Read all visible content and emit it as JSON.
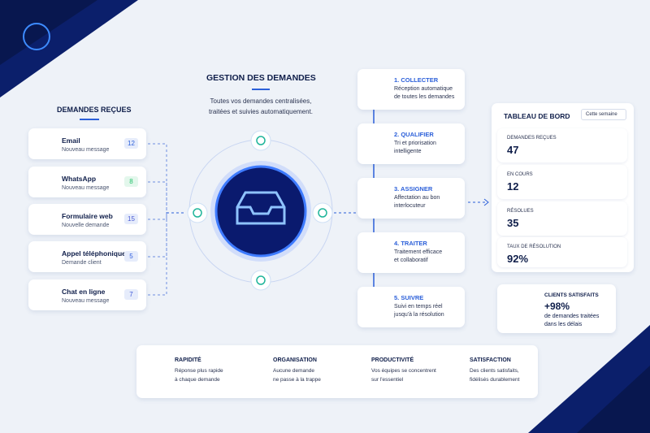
{
  "left": {
    "title": "DEMANDES REÇUES",
    "items": [
      {
        "label": "Email",
        "sub": "Nouveau message",
        "count": 12
      },
      {
        "label": "WhatsApp",
        "sub": "Nouveau message",
        "count": 8
      },
      {
        "label": "Formulaire web",
        "sub": "Nouvelle demande",
        "count": 15
      },
      {
        "label": "Appel téléphonique",
        "sub": "Demande client",
        "count": 5
      },
      {
        "label": "Chat en ligne",
        "sub": "Nouveau message",
        "count": 7
      }
    ]
  },
  "center": {
    "title": "GESTION DES DEMANDES",
    "lines": [
      "Toutes vos demandes centralisées,",
      "traitées et suivies automatiquement."
    ]
  },
  "steps": [
    {
      "title": "1. COLLECTER",
      "lines": [
        "Réception automatique",
        "de toutes les demandes"
      ]
    },
    {
      "title": "2. QUALIFIER",
      "lines": [
        "Tri et priorisation",
        "intelligente"
      ]
    },
    {
      "title": "3. ASSIGNER",
      "lines": [
        "Affectation au bon",
        "interlocuteur"
      ]
    },
    {
      "title": "4. TRAITER",
      "lines": [
        "Traitement efficace",
        "et collaboratif"
      ]
    },
    {
      "title": "5. SUIVRE",
      "lines": [
        "Suivi en temps réel",
        "jusqu'à la résolution"
      ]
    }
  ],
  "dashboard": {
    "title": "TABLEAU DE BORD",
    "period": "Cette semaine",
    "metrics": [
      {
        "label": "DEMANDES REÇUES",
        "value": 47
      },
      {
        "label": "EN COURS",
        "value": 12
      },
      {
        "label": "RÉSOLUES",
        "value": 35
      },
      {
        "label": "TAUX DE RÉSOLUTION",
        "value": "92%"
      }
    ]
  },
  "satisfaction": {
    "title": "CLIENTS SATISFAITS",
    "value": "+98%",
    "lines": [
      "de demandes traitées",
      "dans les délais"
    ]
  },
  "benefits": [
    {
      "title": "RAPIDITÉ",
      "lines": [
        "Réponse plus rapide",
        "à chaque demande"
      ]
    },
    {
      "title": "ORGANISATION",
      "lines": [
        "Aucune demande",
        "ne passe à la trappe"
      ]
    },
    {
      "title": "PRODUCTIVITÉ",
      "lines": [
        "Vos équipes se concentrent",
        "sur l'essentiel"
      ]
    },
    {
      "title": "SATISFACTION",
      "lines": [
        "Des clients satisfaits,",
        "fidélisés durablement"
      ]
    }
  ]
}
